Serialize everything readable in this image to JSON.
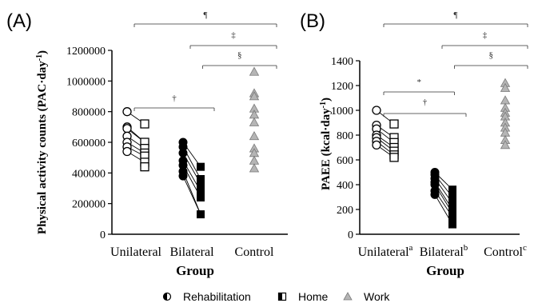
{
  "legend": {
    "items": [
      {
        "label": "Rehabilitation",
        "marker": "half-filled-circle"
      },
      {
        "label": "Home",
        "marker": "half-filled-square"
      },
      {
        "label": "Work",
        "marker": "grey-triangle"
      }
    ]
  },
  "chart_data": [
    {
      "type": "scatter",
      "panel_label": "(A)",
      "xlabel": "Group",
      "ylabel_main": "Physical activity counts (PAC·day",
      "ylabel_sup": "-1",
      "ylabel_end": ")",
      "ylim": [
        0,
        1200000
      ],
      "yticks": [
        "0",
        "200000",
        "400000",
        "600000",
        "800000",
        "1000000",
        "1200000"
      ],
      "categories": [
        {
          "label": "Unilateral",
          "sup": ""
        },
        {
          "label": "Bilateral",
          "sup": ""
        },
        {
          "label": "Control",
          "sup": ""
        }
      ],
      "groups": {
        "unilateral_rehab": [
          800000,
          700000,
          690000,
          640000,
          600000,
          570000,
          540000
        ],
        "unilateral_home": [
          720000,
          600000,
          560000,
          530000,
          510000,
          470000,
          440000
        ],
        "bilateral_rehab": [
          600000,
          570000,
          530000,
          480000,
          450000,
          410000,
          380000
        ],
        "bilateral_home": [
          440000,
          360000,
          330000,
          280000,
          240000,
          130000
        ],
        "control_work": [
          1060000,
          920000,
          900000,
          820000,
          780000,
          730000,
          640000,
          560000,
          530000,
          480000,
          430000
        ]
      },
      "pairs": [
        [
          0,
          0
        ],
        [
          1,
          1
        ],
        [
          2,
          1
        ],
        [
          3,
          2
        ],
        [
          4,
          3
        ],
        [
          5,
          4
        ],
        [
          6,
          5
        ]
      ],
      "pairs_bilateral": [
        [
          0,
          0
        ],
        [
          1,
          1
        ],
        [
          2,
          2
        ],
        [
          3,
          3
        ],
        [
          4,
          4
        ],
        [
          5,
          5
        ],
        [
          6,
          5
        ]
      ],
      "significance": [
        {
          "symbol": "¶",
          "from": 0,
          "to": 2
        },
        {
          "symbol": "‡",
          "from": 1,
          "to": 2
        },
        {
          "symbol": "§",
          "from": 1.2,
          "to": 2
        },
        {
          "symbol": "†",
          "from": 0,
          "to": 1
        }
      ]
    },
    {
      "type": "scatter",
      "panel_label": "(B)",
      "xlabel": "Group",
      "ylabel_main": "PAEE (kcal·day",
      "ylabel_sup": "-1",
      "ylabel_end": ")",
      "ylim": [
        0,
        1400
      ],
      "yticks": [
        "0",
        "200",
        "400",
        "600",
        "800",
        "1000",
        "1200",
        "1400"
      ],
      "categories": [
        {
          "label": "Unilateral",
          "sup": "a"
        },
        {
          "label": "Bilateral",
          "sup": "b"
        },
        {
          "label": "Control",
          "sup": "c"
        }
      ],
      "groups": {
        "unilateral_rehab": [
          1000,
          880,
          850,
          800,
          780,
          750,
          720
        ],
        "unilateral_home": [
          890,
          780,
          740,
          700,
          670,
          640,
          620
        ],
        "bilateral_rehab": [
          500,
          480,
          450,
          420,
          400,
          350,
          320
        ],
        "bilateral_home": [
          360,
          300,
          250,
          200,
          170,
          140,
          80
        ],
        "control_work": [
          1220,
          1180,
          1080,
          1020,
          980,
          950,
          900,
          860,
          820,
          760,
          720
        ]
      },
      "pairs": [
        [
          0,
          0
        ],
        [
          1,
          1
        ],
        [
          2,
          2
        ],
        [
          3,
          3
        ],
        [
          4,
          4
        ],
        [
          5,
          5
        ],
        [
          6,
          6
        ]
      ],
      "pairs_bilateral": [
        [
          0,
          0
        ],
        [
          1,
          1
        ],
        [
          2,
          2
        ],
        [
          3,
          3
        ],
        [
          4,
          4
        ],
        [
          5,
          5
        ],
        [
          6,
          6
        ]
      ],
      "significance": [
        {
          "symbol": "¶",
          "from": 0,
          "to": 2
        },
        {
          "symbol": "‡",
          "from": 1,
          "to": 2
        },
        {
          "symbol": "§",
          "from": 1.2,
          "to": 2
        },
        {
          "symbol": "*",
          "from": 0,
          "to": 0.8
        },
        {
          "symbol": "†",
          "from": 0,
          "to": 1
        }
      ]
    }
  ]
}
